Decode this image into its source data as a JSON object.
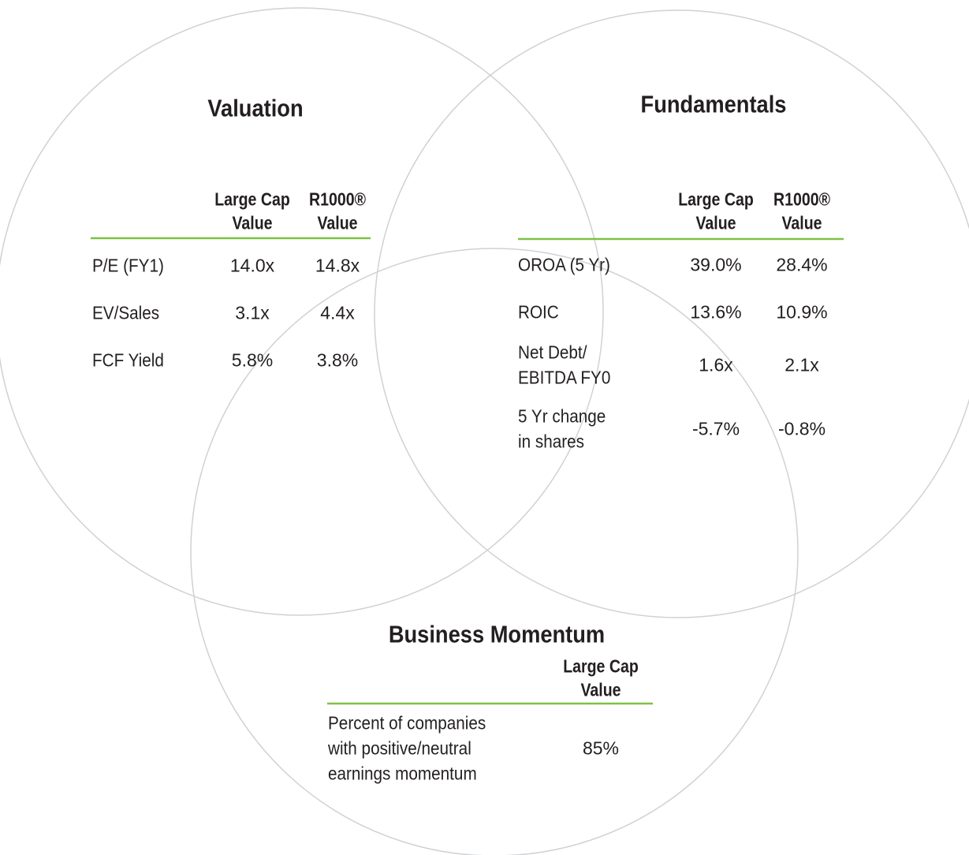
{
  "sections": [
    {
      "title": "Valuation",
      "columns": [
        [
          "Large Cap",
          "Value"
        ],
        [
          "R1000®",
          "Value"
        ]
      ],
      "rows": [
        {
          "label": [
            "P/E (FY1)"
          ],
          "values": [
            "14.0x",
            "14.8x"
          ]
        },
        {
          "label": [
            "EV/Sales"
          ],
          "values": [
            "3.1x",
            "4.4x"
          ]
        },
        {
          "label": [
            "FCF Yield"
          ],
          "values": [
            "5.8%",
            "3.8%"
          ]
        }
      ]
    },
    {
      "title": "Fundamentals",
      "columns": [
        [
          "Large Cap",
          "Value"
        ],
        [
          "R1000®",
          "Value"
        ]
      ],
      "rows": [
        {
          "label": [
            "OROA (5 Yr)"
          ],
          "values": [
            "39.0%",
            "28.4%"
          ]
        },
        {
          "label": [
            "ROIC"
          ],
          "values": [
            "13.6%",
            "10.9%"
          ]
        },
        {
          "label": [
            "Net Debt/",
            "EBITDA FY0"
          ],
          "values": [
            "1.6x",
            "2.1x"
          ]
        },
        {
          "label": [
            "5 Yr change",
            "in shares"
          ],
          "values": [
            "-5.7%",
            "-0.8%"
          ]
        }
      ]
    },
    {
      "title": "Business Momentum",
      "columns": [
        [
          "Large Cap",
          "Value"
        ]
      ],
      "rows": [
        {
          "label": [
            "Percent of companies",
            "with positive/neutral",
            "earnings momentum"
          ],
          "values": [
            "85%"
          ]
        }
      ]
    }
  ]
}
